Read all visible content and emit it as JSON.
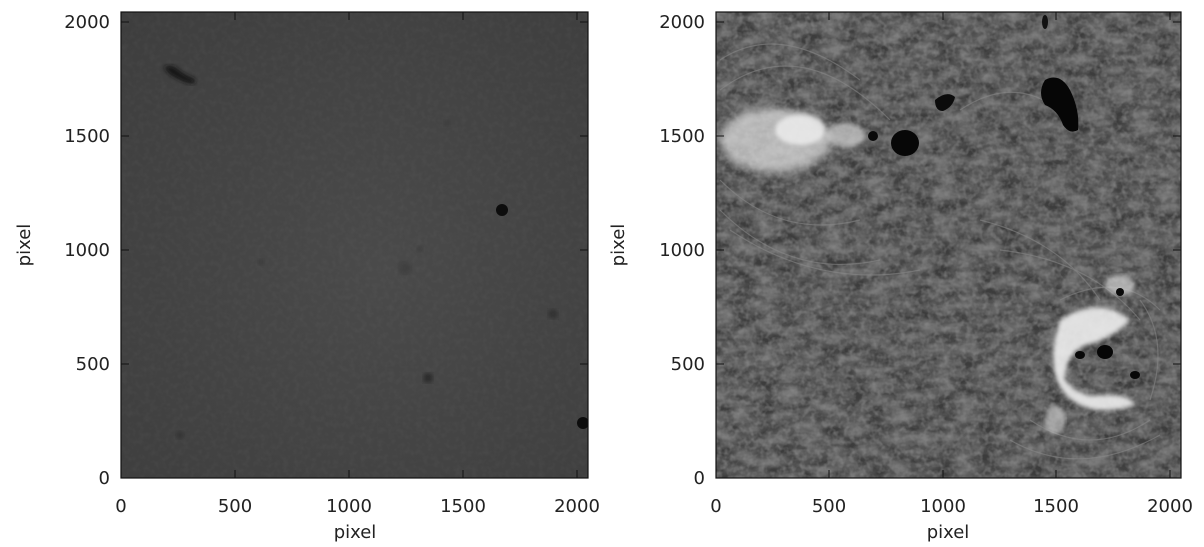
{
  "panels": [
    {
      "id": "left",
      "xlabel": "pixel",
      "ylabel": "pixel",
      "x_ticks": [
        "0",
        "500",
        "1000",
        "1500",
        "2000"
      ],
      "y_ticks": [
        "0",
        "500",
        "1000",
        "1500",
        "2000"
      ],
      "x_range": [
        0,
        2048
      ],
      "y_range": [
        0,
        2048
      ],
      "image_tone": "flat-field gray with dust specks"
    },
    {
      "id": "right",
      "xlabel": "pixel",
      "ylabel": "pixel",
      "x_ticks": [
        "0",
        "500",
        "1000",
        "1500",
        "2000"
      ],
      "y_ticks": [
        "0",
        "500",
        "1000",
        "1500",
        "2000"
      ],
      "x_range": [
        0,
        2048
      ],
      "y_range": [
        0,
        2048
      ],
      "image_tone": "solar H-alpha fibrils with sunspots and bright plage"
    }
  ],
  "colors": {
    "left_bg": "#454545",
    "right_bg": "#3a3a3a",
    "plage": "#e8e8e8",
    "spot": "#0a0a0a"
  }
}
